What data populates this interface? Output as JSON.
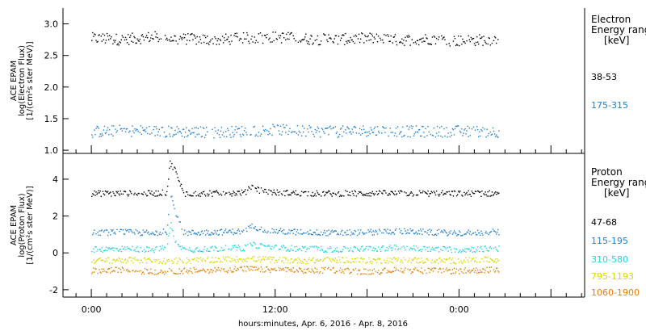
{
  "chart_data": [
    {
      "type": "scatter",
      "title": "",
      "ylabel_lines": [
        "ACE EPAM",
        "log(Electron Flux)",
        "[1/(cm²s ster MeV)]"
      ],
      "ytick_labels": [
        "1.0",
        "1.5",
        "2.0",
        "2.5",
        "3.0"
      ],
      "ylim": [
        0.95,
        3.25
      ],
      "log_y": false,
      "legend_title": "Electron",
      "legend_subtitle": "Energy ranges",
      "legend_units": "[keV]",
      "series": [
        {
          "name": "38-53",
          "color": "#000000",
          "x": [
            0.0,
            4.0,
            8.0,
            12.0,
            16.0,
            20.0,
            24.0,
            28.0,
            32.0,
            36.0,
            40.0,
            44.0,
            48.0,
            52.0
          ],
          "y": [
            2.78,
            2.76,
            2.8,
            2.77,
            2.75,
            2.78,
            2.8,
            2.77,
            2.76,
            2.78,
            2.75,
            2.77,
            2.74,
            2.76
          ]
        },
        {
          "name": "175-315",
          "color": "#1f7fd0",
          "x": [
            0.0,
            4.0,
            8.0,
            12.0,
            16.0,
            20.0,
            24.0,
            28.0,
            32.0,
            36.0,
            40.0,
            44.0,
            48.0,
            52.0
          ],
          "y": [
            1.3,
            1.32,
            1.31,
            1.3,
            1.29,
            1.31,
            1.33,
            1.31,
            1.3,
            1.32,
            1.31,
            1.3,
            1.31,
            1.3
          ]
        }
      ]
    },
    {
      "type": "scatter",
      "title": "",
      "ylabel_lines": [
        "ACE EPAM",
        "log(Proton Flux)",
        "[1/(cm²s ster MeV)]"
      ],
      "ytick_labels": [
        "-2",
        "0",
        "2",
        "4"
      ],
      "ylim": [
        -2.4,
        5.4
      ],
      "log_y": false,
      "legend_title": "Proton",
      "legend_subtitle": "Energy ranges",
      "legend_units": "[keV]",
      "series": [
        {
          "name": "47-68",
          "color": "#000000",
          "x": [
            0.0,
            4.0,
            8.0,
            9.8,
            10.2,
            10.8,
            12.0,
            16.0,
            20.0,
            21.0,
            22.0,
            24.0,
            28.0,
            32.0,
            36.0,
            40.0,
            44.0,
            48.0,
            52.0
          ],
          "y": [
            3.25,
            3.25,
            3.25,
            3.3,
            4.9,
            4.6,
            3.25,
            3.25,
            3.3,
            3.65,
            3.4,
            3.3,
            3.25,
            3.25,
            3.25,
            3.25,
            3.25,
            3.25,
            3.25
          ]
        },
        {
          "name": "115-195",
          "color": "#1f7fd0",
          "x": [
            0.0,
            4.0,
            8.0,
            9.8,
            10.3,
            10.8,
            12.0,
            16.0,
            20.0,
            21.0,
            22.0,
            24.0,
            28.0,
            32.0,
            36.0,
            40.0,
            44.0,
            48.0,
            52.0
          ],
          "y": [
            1.1,
            1.15,
            1.1,
            1.2,
            3.3,
            2.4,
            1.1,
            1.15,
            1.2,
            1.55,
            1.3,
            1.2,
            1.15,
            1.1,
            1.15,
            1.2,
            1.15,
            1.1,
            1.15
          ]
        },
        {
          "name": "310-580",
          "color": "#22d3d8",
          "x": [
            0.0,
            4.0,
            8.0,
            9.8,
            10.3,
            10.8,
            12.0,
            16.0,
            20.0,
            21.0,
            24.0,
            28.0,
            32.0,
            36.0,
            40.0,
            44.0,
            48.0,
            52.0
          ],
          "y": [
            0.2,
            0.25,
            0.2,
            0.3,
            1.6,
            0.8,
            0.2,
            0.25,
            0.3,
            0.45,
            0.3,
            0.25,
            0.2,
            0.25,
            0.3,
            0.25,
            0.2,
            0.25
          ]
        },
        {
          "name": "795-1193",
          "color": "#d8d800",
          "x": [
            0.0,
            4.0,
            8.0,
            12.0,
            16.0,
            20.0,
            24.0,
            28.0,
            32.0,
            36.0,
            40.0,
            44.0,
            48.0,
            52.0
          ],
          "y": [
            -0.4,
            -0.35,
            -0.4,
            -0.4,
            -0.35,
            -0.3,
            -0.35,
            -0.4,
            -0.35,
            -0.4,
            -0.35,
            -0.4,
            -0.4,
            -0.35
          ]
        },
        {
          "name": "1060-1900",
          "color": "#e08000",
          "x": [
            0.0,
            4.0,
            8.0,
            12.0,
            16.0,
            20.0,
            24.0,
            28.0,
            32.0,
            36.0,
            40.0,
            44.0,
            48.0,
            52.0
          ],
          "y": [
            -0.95,
            -0.9,
            -1.0,
            -0.95,
            -0.9,
            -0.85,
            -0.9,
            -0.95,
            -0.9,
            -1.0,
            -0.9,
            -0.95,
            -0.95,
            -0.9
          ]
        }
      ]
    }
  ],
  "xaxis": {
    "xlim": [
      -3.7,
      64.4
    ],
    "data_end": 53.2,
    "tick_labels": [
      "0:00",
      "12:00",
      "0:00"
    ],
    "xlabel": "hours:minutes, Apr.  6, 2016 - Apr.  8, 2016"
  },
  "colors": {
    "border": "#000000",
    "background": "#ffffff"
  }
}
